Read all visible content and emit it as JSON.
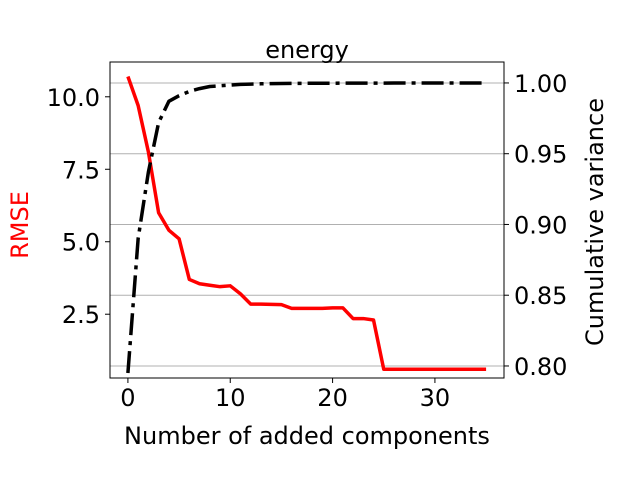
{
  "chart_data": {
    "type": "line",
    "title": "energy",
    "xlabel": "Number of added components",
    "ylabel_left": "RMSE",
    "ylabel_right": "Cumulative variance",
    "xlim": [
      -1.75,
      36.75
    ],
    "ylim_left": [
      0.3,
      11.2
    ],
    "ylim_right": [
      0.7915,
      1.0148
    ],
    "x_ticks": [
      0,
      10,
      20,
      30
    ],
    "x_tick_labels": [
      "0",
      "10",
      "20",
      "30"
    ],
    "y_left_ticks": [
      2.5,
      5.0,
      7.5,
      10.0
    ],
    "y_left_tick_labels": [
      "2.5",
      "5.0",
      "7.5",
      "10.0"
    ],
    "y_right_ticks": [
      0.8,
      0.85,
      0.9,
      0.95,
      1.0
    ],
    "y_right_tick_labels": [
      "0.80",
      "0.85",
      "0.90",
      "0.95",
      "1.00"
    ],
    "grid": "horizontal lines at right-axis ticks",
    "series": [
      {
        "axis": "left",
        "style": "solid",
        "color": "#ff0000",
        "x": [
          0,
          1,
          2,
          3,
          4,
          5,
          6,
          7,
          8,
          9,
          10,
          11,
          12,
          13,
          14,
          15,
          16,
          17,
          18,
          19,
          20,
          21,
          22,
          23,
          24,
          25,
          26,
          27,
          28,
          29,
          30,
          31,
          32,
          33,
          34,
          35
        ],
        "values": [
          10.7,
          9.7,
          8.1,
          6.0,
          5.4,
          5.1,
          3.7,
          3.55,
          3.5,
          3.45,
          3.48,
          3.2,
          2.85,
          2.85,
          2.84,
          2.83,
          2.7,
          2.7,
          2.7,
          2.7,
          2.72,
          2.72,
          2.35,
          2.35,
          2.3,
          0.6,
          0.6,
          0.6,
          0.6,
          0.6,
          0.6,
          0.6,
          0.6,
          0.6,
          0.6,
          0.6
        ]
      },
      {
        "axis": "right",
        "style": "dashdot",
        "color": "#000000",
        "x": [
          0,
          1,
          2,
          3,
          4,
          5,
          6,
          7,
          8,
          9,
          10,
          11,
          12,
          13,
          14,
          15,
          16,
          17,
          18,
          19,
          20,
          21,
          22,
          23,
          24,
          25,
          26,
          27,
          28,
          29,
          30,
          31,
          32,
          33,
          34,
          35
        ],
        "values": [
          0.795,
          0.89,
          0.937,
          0.972,
          0.987,
          0.991,
          0.994,
          0.996,
          0.9975,
          0.998,
          0.9985,
          0.999,
          0.9992,
          0.9994,
          0.9995,
          0.9996,
          0.9997,
          0.9997,
          0.9998,
          0.9998,
          0.9998,
          0.9999,
          0.9999,
          0.9999,
          0.9999,
          0.9999,
          1.0,
          1.0,
          1.0,
          1.0,
          1.0,
          1.0,
          1.0,
          1.0,
          1.0,
          1.0
        ]
      }
    ]
  }
}
